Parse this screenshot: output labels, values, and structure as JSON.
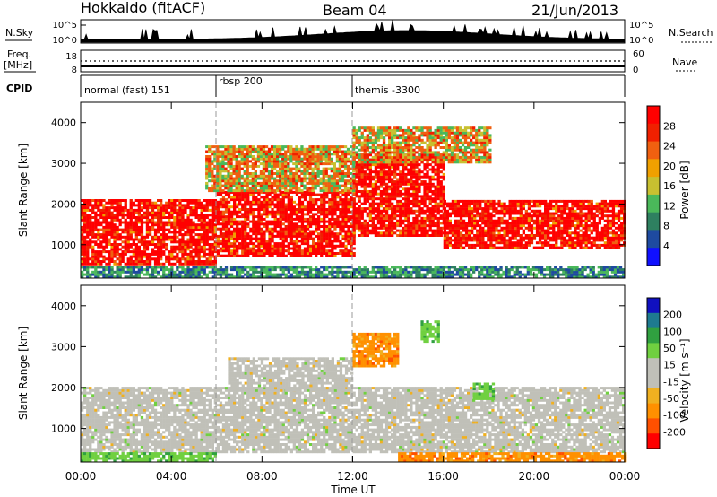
{
  "header": {
    "station": "Hokkaido (fitACF)",
    "beam": "Beam 04",
    "date": "21/Jun/2013"
  },
  "strip_nsky": {
    "label": "N.Sky",
    "right_label": "N.Search",
    "ticks": [
      "10^5",
      "10^0"
    ]
  },
  "strip_freq": {
    "label_line1": "Freq.",
    "label_line2": "[MHz]",
    "left_ticks": [
      "18",
      "8"
    ],
    "right_ticks": [
      "60",
      "0"
    ],
    "right_label": "Nave"
  },
  "strip_cpid": {
    "label": "CPID",
    "segments": [
      {
        "label": "normal (fast) 151",
        "start_hour": 0
      },
      {
        "label": "rbsp 200",
        "start_hour": 6
      },
      {
        "label": "themis -3300",
        "start_hour": 12
      }
    ]
  },
  "chart_data": [
    {
      "type": "heatmap",
      "name": "power",
      "ylabel": "Slant Range [km]",
      "x_ticks": [
        "00:00",
        "04:00",
        "08:00",
        "12:00",
        "16:00",
        "20:00",
        "00:00"
      ],
      "xlim_hours": [
        0,
        24
      ],
      "y_ticks": [
        1000,
        2000,
        3000,
        4000
      ],
      "ylim": [
        180,
        4500
      ],
      "colorbar": {
        "label": "Power [dB]",
        "ticks": [
          "28",
          "24",
          "20",
          "16",
          "12",
          "8",
          "4"
        ],
        "range": [
          0,
          32
        ],
        "colors": [
          "#1010ff",
          "#1e4aa0",
          "#2e8060",
          "#4ab85a",
          "#c8c030",
          "#f0a000",
          "#f06010",
          "#f02000",
          "#ff0000"
        ]
      },
      "features": [
        {
          "t0": 0.0,
          "t1": 6.0,
          "r0": 500,
          "r1": 2100,
          "level": "high"
        },
        {
          "t0": 6.0,
          "t1": 12.0,
          "r0": 700,
          "r1": 2300,
          "level": "high"
        },
        {
          "t0": 12.0,
          "t1": 16.0,
          "r0": 1200,
          "r1": 3200,
          "level": "high"
        },
        {
          "t0": 16.0,
          "t1": 24.0,
          "r0": 900,
          "r1": 2100,
          "level": "high"
        },
        {
          "t0": 5.5,
          "t1": 12.0,
          "r0": 2300,
          "r1": 3400,
          "level": "medium"
        },
        {
          "t0": 12.0,
          "t1": 18.0,
          "r0": 3000,
          "r1": 3900,
          "level": "medium"
        },
        {
          "t0": 0.0,
          "t1": 24.0,
          "r0": 180,
          "r1": 450,
          "level": "low"
        }
      ]
    },
    {
      "type": "heatmap",
      "name": "velocity",
      "ylabel": "Slant Range [km]",
      "xlabel": "Time UT",
      "x_ticks": [
        "00:00",
        "04:00",
        "08:00",
        "12:00",
        "16:00",
        "20:00",
        "00:00"
      ],
      "xlim_hours": [
        0,
        24
      ],
      "y_ticks": [
        1000,
        2000,
        3000,
        4000
      ],
      "ylim": [
        180,
        4500
      ],
      "colorbar": {
        "label": "Velocity [m s⁻¹]",
        "ticks": [
          "200",
          "100",
          "50",
          "15",
          "-15",
          "-50",
          "-100",
          "-200"
        ],
        "range": [
          -250,
          250
        ],
        "colors": [
          "#ff0000",
          "#ff5000",
          "#ff9000",
          "#f0b020",
          "#c0c0b8",
          "#c0c0b8",
          "#70d040",
          "#30a040",
          "#1e7a90",
          "#1010c0"
        ]
      },
      "features": [
        {
          "t0": 0.0,
          "t1": 24.0,
          "r0": 400,
          "r1": 2000,
          "velocity": 0
        },
        {
          "t0": 6.5,
          "t1": 12.0,
          "r0": 1900,
          "r1": 2700,
          "velocity": 0
        },
        {
          "t0": 12.0,
          "t1": 14.0,
          "r0": 2500,
          "r1": 3300,
          "velocity": -60
        },
        {
          "t0": 15.0,
          "t1": 15.8,
          "r0": 3100,
          "r1": 3600,
          "velocity": 60
        },
        {
          "t0": 17.3,
          "t1": 18.2,
          "r0": 1700,
          "r1": 2100,
          "velocity": 60
        },
        {
          "t0": 0.0,
          "t1": 6.0,
          "r0": 180,
          "r1": 400,
          "velocity": 60
        },
        {
          "t0": 14.0,
          "t1": 24.0,
          "r0": 180,
          "r1": 420,
          "velocity": -60
        }
      ]
    }
  ]
}
